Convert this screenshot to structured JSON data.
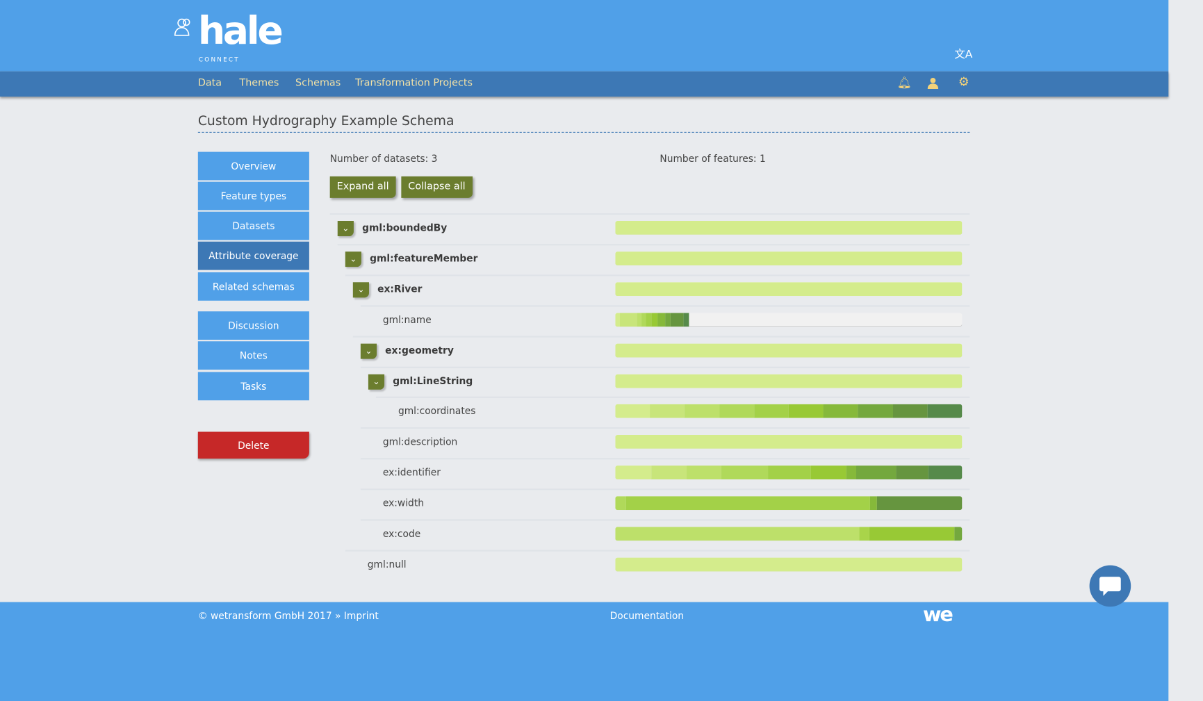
{
  "brand": {
    "logo": "hale",
    "sub": "CONNECT"
  },
  "nav": {
    "items": [
      "Data",
      "Themes",
      "Schemas",
      "Transformation Projects"
    ],
    "icons": [
      "bell-icon",
      "user-icon",
      "gear-icon"
    ],
    "translate_icon": "translate-icon"
  },
  "page_title": "Custom Hydrography Example Schema",
  "sidebar": {
    "items": [
      {
        "label": "Overview",
        "active": false
      },
      {
        "label": "Feature types",
        "active": false
      },
      {
        "label": "Datasets",
        "active": false
      },
      {
        "label": "Attribute coverage",
        "active": true
      },
      {
        "label": "Related schemas",
        "active": false
      }
    ],
    "items2": [
      {
        "label": "Discussion"
      },
      {
        "label": "Notes"
      },
      {
        "label": "Tasks"
      }
    ],
    "delete": "Delete"
  },
  "stats": {
    "datasets": "Number of datasets: 3",
    "features": "Number of features: 1"
  },
  "buttons": {
    "expand": "Expand all",
    "collapse": "Collapse all"
  },
  "colors": {
    "header": "#50a0e8",
    "nav": "#3d78b5",
    "toggle": "#6b7d2e",
    "delete": "#c62828"
  },
  "tree": [
    {
      "label": "gml:boundedBy",
      "level": 0,
      "expandable": true,
      "coverage": [
        [
          1,
          "#d4ec8c"
        ]
      ]
    },
    {
      "label": "gml:featureMember",
      "level": 1,
      "expandable": true,
      "coverage": [
        [
          1,
          "#d4ec8c"
        ]
      ]
    },
    {
      "label": "ex:River",
      "level": 2,
      "expandable": true,
      "coverage": [
        [
          1,
          "#d4ec8c"
        ]
      ]
    },
    {
      "label": "gml:name",
      "level": 3,
      "expandable": false,
      "coverage": [
        [
          0.014,
          "#d4ec8c"
        ],
        [
          0.049,
          "#c8e57a"
        ],
        [
          0.012,
          "#bde06a"
        ],
        [
          0.013,
          "#b0d95a"
        ],
        [
          0.016,
          "#a3d148"
        ],
        [
          0.017,
          "#98c935"
        ],
        [
          0.023,
          "#86b93a"
        ],
        [
          0.015,
          "#74a83e"
        ],
        [
          0.039,
          "#66953f"
        ],
        [
          0.014,
          "#568a4a"
        ]
      ]
    },
    {
      "label": "ex:geometry",
      "level": 3,
      "expandable": true,
      "coverage": [
        [
          1,
          "#d4ec8c"
        ]
      ]
    },
    {
      "label": "gml:LineString",
      "level": 4,
      "expandable": true,
      "coverage": [
        [
          1,
          "#d4ec8c"
        ]
      ]
    },
    {
      "label": "gml:coordinates",
      "level": 5,
      "expandable": false,
      "coverage": [
        [
          0.1,
          "#d4ec8c"
        ],
        [
          0.1,
          "#c8e57a"
        ],
        [
          0.1,
          "#bde06a"
        ],
        [
          0.1,
          "#b0d95a"
        ],
        [
          0.1,
          "#a3d148"
        ],
        [
          0.1,
          "#98c935"
        ],
        [
          0.1,
          "#86b93a"
        ],
        [
          0.1,
          "#74a83e"
        ],
        [
          0.1,
          "#66953f"
        ],
        [
          0.1,
          "#568a4a"
        ]
      ]
    },
    {
      "label": "gml:description",
      "level": 3,
      "expandable": false,
      "coverage": [
        [
          1,
          "#d4ec8c"
        ]
      ]
    },
    {
      "label": "ex:identifier",
      "level": 3,
      "expandable": false,
      "coverage": [
        [
          0.105,
          "#d4ec8c"
        ],
        [
          0.101,
          "#c8e57a"
        ],
        [
          0.1,
          "#bde06a"
        ],
        [
          0.134,
          "#b0d95a"
        ],
        [
          0.124,
          "#a3d148"
        ],
        [
          0.101,
          "#98c935"
        ],
        [
          0.029,
          "#86b93a"
        ],
        [
          0.116,
          "#74a83e"
        ],
        [
          0.092,
          "#66953f"
        ],
        [
          0.098,
          "#568a4a"
        ]
      ]
    },
    {
      "label": "ex:width",
      "level": 3,
      "expandable": false,
      "coverage": [
        [
          0.03,
          "#b0d95a"
        ],
        [
          0.704,
          "#a3d148"
        ],
        [
          0.02,
          "#86b93a"
        ],
        [
          0.246,
          "#66953f"
        ]
      ]
    },
    {
      "label": "ex:code",
      "level": 3,
      "expandable": false,
      "coverage": [
        [
          0.704,
          "#bde06a"
        ],
        [
          0.029,
          "#a9d44a"
        ],
        [
          0.244,
          "#98c935"
        ],
        [
          0.023,
          "#74a83e"
        ]
      ]
    },
    {
      "label": "gml:null",
      "level": 1,
      "expandable": false,
      "coverage": [
        [
          1,
          "#d4ec8c"
        ]
      ]
    }
  ],
  "footer": {
    "copyright": "© wetransform GmbH 2017 » Imprint",
    "docs": "Documentation",
    "logo": "we"
  },
  "chat_icon": "chat-bubble-icon"
}
